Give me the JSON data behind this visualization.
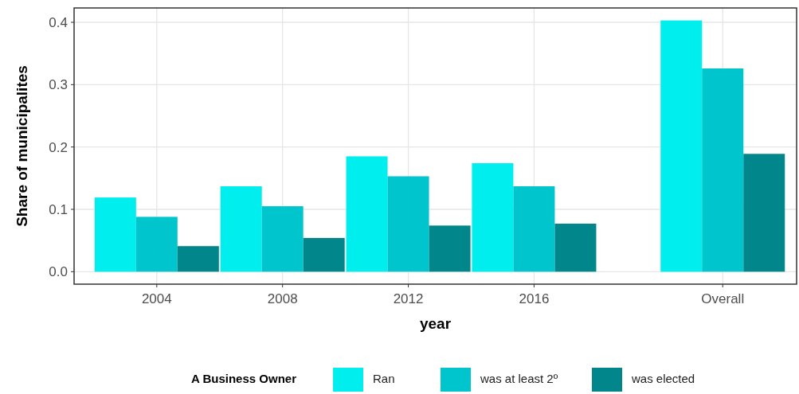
{
  "chart_data": {
    "type": "bar",
    "xlabel": "year",
    "ylabel": "Share of municipalites",
    "legend_title": "A Business Owner",
    "x": [
      2004,
      2008,
      2012,
      2016,
      2022
    ],
    "series": [
      {
        "name": "Ran",
        "color": "#00eeee",
        "values": [
          0.119,
          0.137,
          0.185,
          0.174,
          0.403
        ]
      },
      {
        "name": "was at least 2º",
        "color": "#00c5cd",
        "values": [
          0.088,
          0.105,
          0.153,
          0.137,
          0.326
        ]
      },
      {
        "name": "was elected",
        "color": "#00868b",
        "values": [
          0.041,
          0.054,
          0.074,
          0.077,
          0.189
        ]
      }
    ],
    "xlim": [
      2001.37,
      2024.35
    ],
    "xticks": [
      2004,
      2008,
      2012,
      2016,
      {
        "value": 2022,
        "label": "Overall"
      }
    ],
    "ylim": [
      -0.02,
      0.423
    ],
    "yticks": [
      {
        "value": 0,
        "label": "0.0"
      },
      0.1,
      0.2,
      0.3,
      0.4
    ],
    "grid": true,
    "legend": "bottom"
  }
}
